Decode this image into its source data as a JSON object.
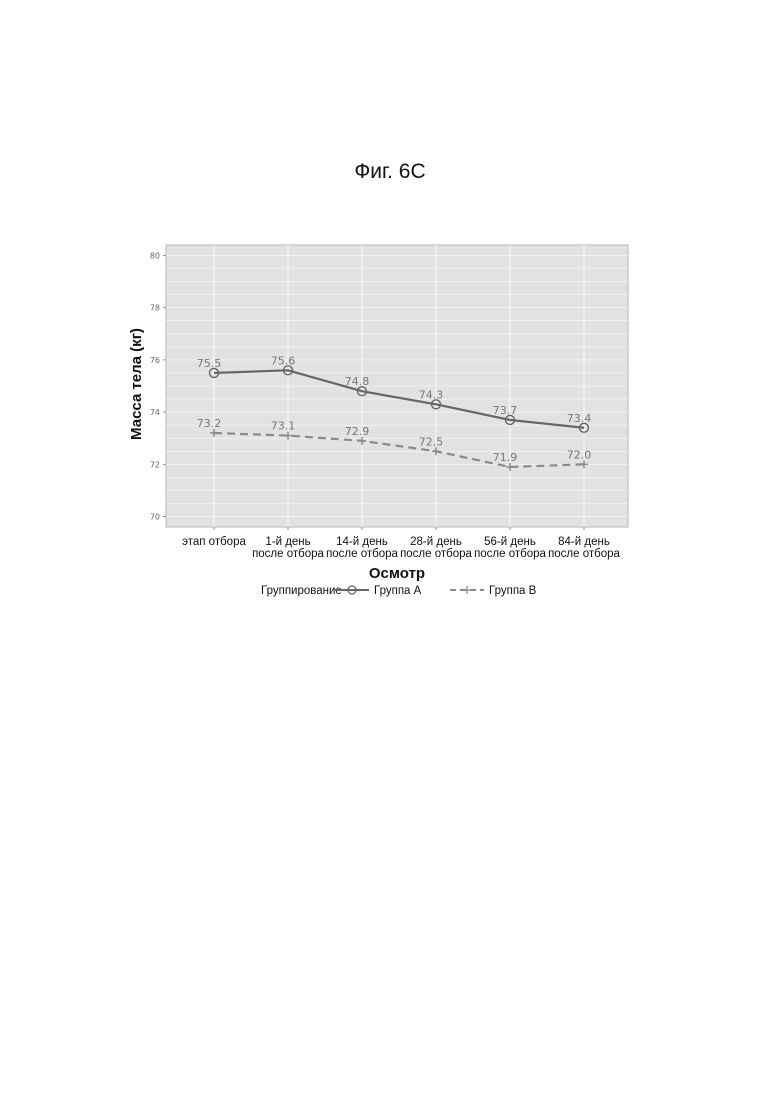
{
  "figure_label": "Фиг. 6C",
  "colors": {
    "series_a": "#666666",
    "series_b": "#8a8a8a",
    "panel": "#e2e2e2",
    "grid": "#ffffff"
  },
  "chart_data": {
    "type": "line",
    "categories": [
      [
        "этап отбора"
      ],
      [
        "1-й день",
        "после отбора"
      ],
      [
        "14-й день",
        "после отбора"
      ],
      [
        "28-й день",
        "после отбора"
      ],
      [
        "56-й день",
        "после отбора"
      ],
      [
        "84-й день",
        "после отбора"
      ]
    ],
    "series": [
      {
        "name": "Группа A",
        "values": [
          75.5,
          75.6,
          74.8,
          74.3,
          73.7,
          73.4
        ],
        "labels": [
          "75.5",
          "75.6",
          "74.8",
          "74.3",
          "73.7",
          "73.4"
        ],
        "marker": "circle",
        "line": "solid"
      },
      {
        "name": "Группа B",
        "values": [
          73.2,
          73.1,
          72.9,
          72.5,
          71.9,
          72.0
        ],
        "labels": [
          "73.2",
          "73.1",
          "72.9",
          "72.5",
          "71.9",
          "72.0"
        ],
        "marker": "plus",
        "line": "dashed"
      }
    ],
    "xlabel": "Осмотр",
    "ylabel": "Масса тела (кг)",
    "ylim": [
      69.6,
      80.4
    ],
    "yticks": [
      "70",
      "72",
      "74",
      "76",
      "78",
      "80"
    ],
    "legend_title": "Группирование",
    "legend_position": "bottom",
    "grid": true
  }
}
